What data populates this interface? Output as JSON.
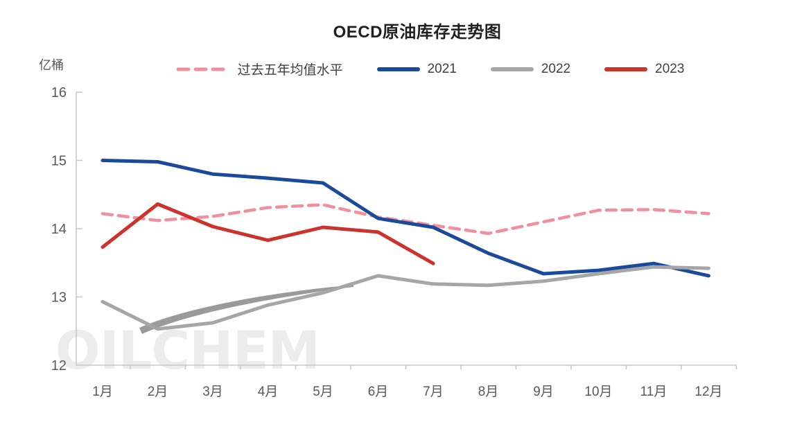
{
  "colors": {
    "axis": "#c8c8c8",
    "tick_label": "#595959",
    "title_text": "#1f1f1f",
    "legend_text": "#3f3f3f",
    "watermark_text": "#ececec",
    "watermark_swoosh": "#9a9a9a"
  },
  "watermark": {
    "text": "OILCHEM",
    "swoosh_icon": "comet-swoosh"
  },
  "chart_data": {
    "type": "line",
    "title": "OECD原油库存走势图",
    "xlabel": "",
    "ylabel": "亿桶",
    "ylim": [
      12,
      16
    ],
    "y_ticks": [
      12,
      13,
      14,
      15,
      16
    ],
    "grid": false,
    "legend_position": "top",
    "categories": [
      "1月",
      "2月",
      "3月",
      "4月",
      "5月",
      "6月",
      "7月",
      "8月",
      "9月",
      "10月",
      "11月",
      "12月"
    ],
    "series": [
      {
        "id": "five-year-avg",
        "name": "过去五年均值水平",
        "color": "#f0909e",
        "style": "dashed",
        "values": [
          14.22,
          14.12,
          14.18,
          14.31,
          14.35,
          14.17,
          14.05,
          13.93,
          14.1,
          14.27,
          14.28,
          14.22
        ]
      },
      {
        "id": "y2021",
        "name": "2021",
        "color": "#1b4a9b",
        "style": "solid",
        "values": [
          15.0,
          14.98,
          14.8,
          14.74,
          14.67,
          14.15,
          14.02,
          13.64,
          13.34,
          13.39,
          13.49,
          13.31
        ]
      },
      {
        "id": "y2022",
        "name": "2022",
        "color": "#a6a6a6",
        "style": "solid",
        "values": [
          12.93,
          12.53,
          12.62,
          12.88,
          13.06,
          13.31,
          13.19,
          13.17,
          13.23,
          13.34,
          13.44,
          13.42
        ]
      },
      {
        "id": "y2023",
        "name": "2023",
        "color": "#cb332c",
        "style": "solid",
        "values": [
          13.73,
          14.36,
          14.03,
          13.83,
          14.02,
          13.95,
          13.49
        ]
      }
    ]
  }
}
